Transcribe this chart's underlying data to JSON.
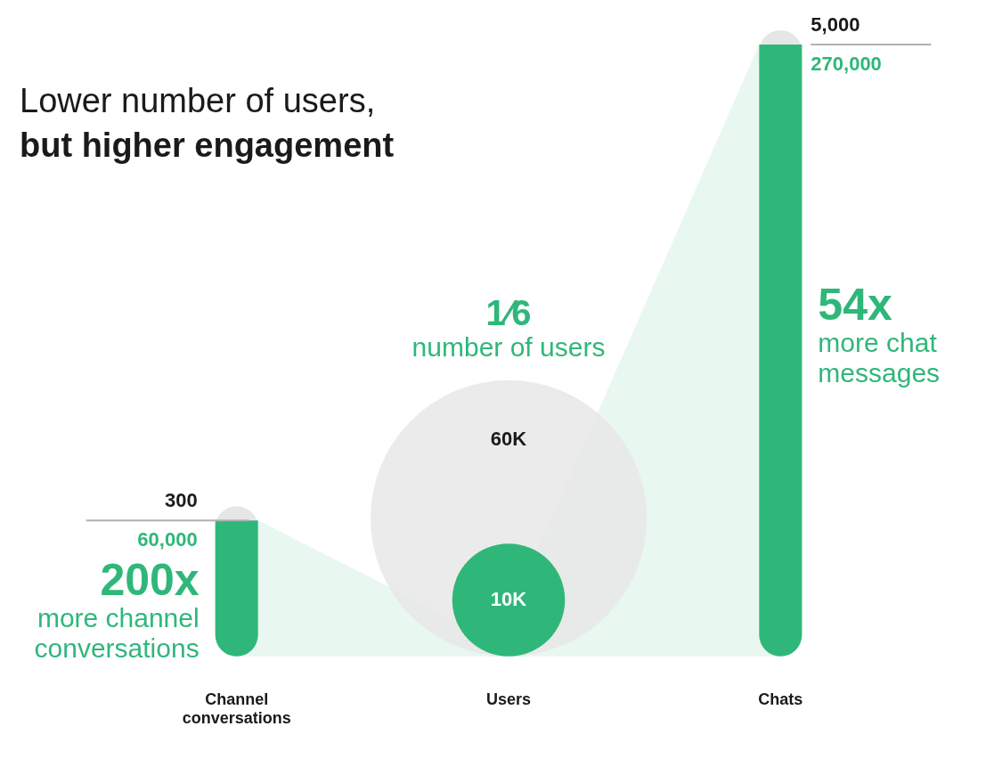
{
  "chart_data": {
    "type": "other",
    "title": "Lower number of users,",
    "subtitle": "but higher engagement",
    "categories": [
      "Channel conversations",
      "Users",
      "Chats"
    ],
    "series": [
      {
        "color": "#e6e6e6",
        "values": [
          300,
          60000,
          5000
        ],
        "value_labels": [
          "300",
          "60K",
          "5,000"
        ]
      },
      {
        "color": "#2fb77a",
        "values": [
          60000,
          10000,
          270000
        ],
        "value_labels": [
          "60,000",
          "10K",
          "270,000"
        ]
      }
    ],
    "annotations": [
      {
        "text": "200x",
        "x": "Channel conversations"
      },
      {
        "text": "more channel conversations",
        "x": "Channel conversations"
      },
      {
        "text": "1⁄6",
        "x": "Users"
      },
      {
        "text": "number of users",
        "x": "Users"
      },
      {
        "text": "54x",
        "x": "Chats"
      },
      {
        "text": "more chat messages",
        "x": "Chats"
      }
    ],
    "legend": false
  }
}
